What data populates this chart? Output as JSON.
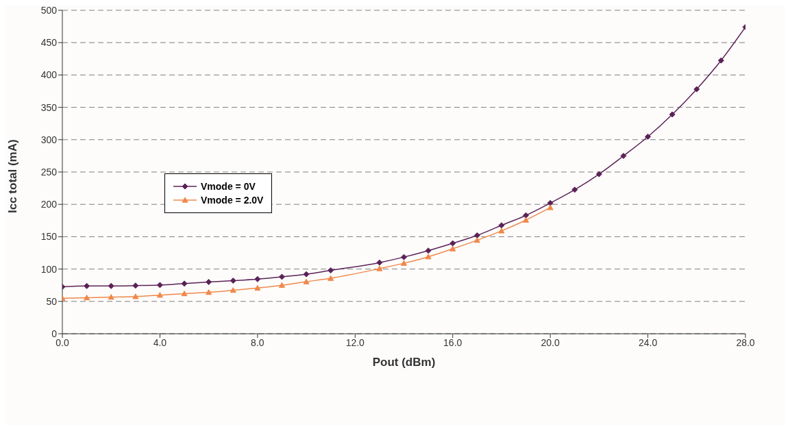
{
  "chart_data": {
    "type": "line",
    "xlabel": "Pout (dBm)",
    "ylabel": "Icc total (mA)",
    "xlim": [
      0,
      28
    ],
    "xticks": [
      {
        "value": 0,
        "label": "0.0"
      },
      {
        "value": 4,
        "label": "4.0"
      },
      {
        "value": 8,
        "label": "8.0"
      },
      {
        "value": 12,
        "label": "12.0"
      },
      {
        "value": 16,
        "label": "16.0"
      },
      {
        "value": 20,
        "label": "20.0"
      },
      {
        "value": 24,
        "label": "24.0"
      },
      {
        "value": 28,
        "label": "28.0"
      }
    ],
    "ylim": [
      0,
      500
    ],
    "yticks": [
      0,
      50,
      100,
      150,
      200,
      250,
      300,
      350,
      400,
      450,
      500
    ],
    "grid": "y",
    "legend": "left",
    "series": [
      {
        "name": "Vmode = 0V",
        "color": "#5b2257",
        "marker": "diamond",
        "x": [
          0,
          1,
          2,
          3,
          4,
          5,
          6,
          7,
          8,
          9,
          10,
          11,
          13,
          14,
          15,
          16,
          17,
          18,
          19,
          20,
          21,
          22,
          23,
          24,
          25,
          26,
          27,
          28
        ],
        "values": [
          72.5,
          73.8,
          73.8,
          74.4,
          75.3,
          77.5,
          80,
          82,
          84.4,
          88,
          92,
          98,
          110,
          118.5,
          128.5,
          139.8,
          152,
          167.6,
          183,
          202,
          222.6,
          246.7,
          274.9,
          304.6,
          339,
          378,
          422.4,
          474
        ]
      },
      {
        "name": "Vmode = 2.0V",
        "color": "#f0884a",
        "marker": "triangle",
        "x": [
          0,
          1,
          2,
          3,
          4,
          5,
          6,
          7,
          8,
          9,
          10,
          11,
          13,
          14,
          15,
          16,
          17,
          18,
          19,
          20
        ],
        "values": [
          54.7,
          55.6,
          56.6,
          57.5,
          59.7,
          62,
          64,
          67.2,
          70.6,
          75,
          80.4,
          85.7,
          100.7,
          109,
          119,
          131.3,
          144.5,
          159,
          175.7,
          195
        ]
      }
    ]
  }
}
